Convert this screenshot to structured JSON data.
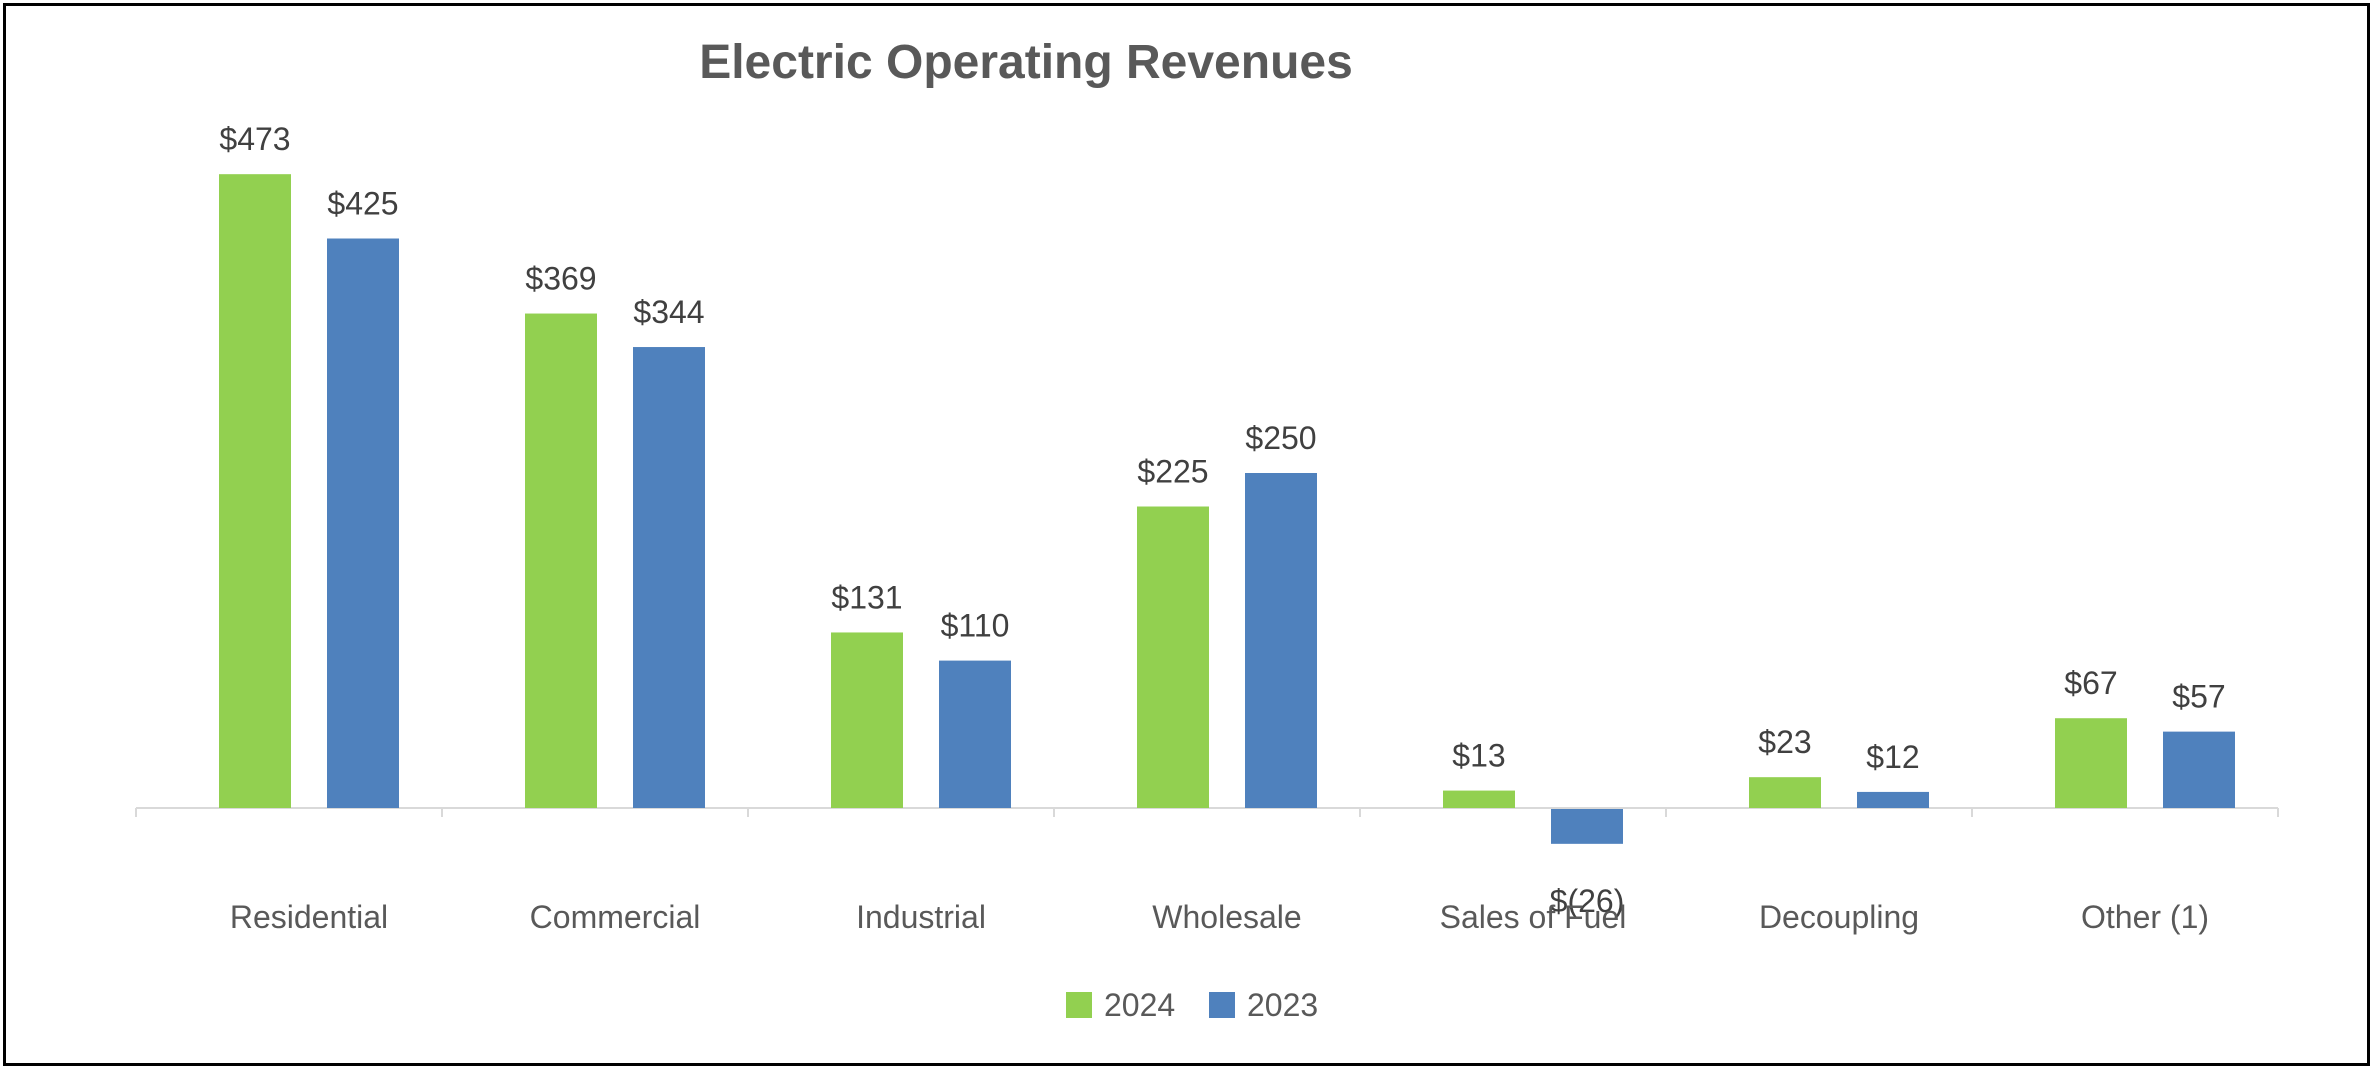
{
  "chart_data": {
    "type": "bar",
    "title": "Electric Operating Revenues",
    "xlabel": "",
    "ylabel": "",
    "categories": [
      "Residential",
      "Commercial",
      "Industrial",
      "Wholesale",
      "Sales of Fuel",
      "Decoupling",
      "Other (1)"
    ],
    "series": [
      {
        "name": "2024",
        "color": "#92D050",
        "values": [
          473,
          369,
          131,
          225,
          13,
          23,
          67
        ],
        "labels": [
          "$473",
          "$369",
          "$131",
          "$225",
          "$13",
          "$23",
          "$67"
        ]
      },
      {
        "name": "2023",
        "color": "#4F81BD",
        "values": [
          425,
          344,
          110,
          250,
          -26,
          12,
          57
        ],
        "labels": [
          "$425",
          "$344",
          "$110",
          "$250",
          "$(26)",
          "$12",
          "$57"
        ]
      }
    ],
    "ylim": [
      -30,
      500
    ],
    "grid": false,
    "legend_position": "bottom-center"
  }
}
